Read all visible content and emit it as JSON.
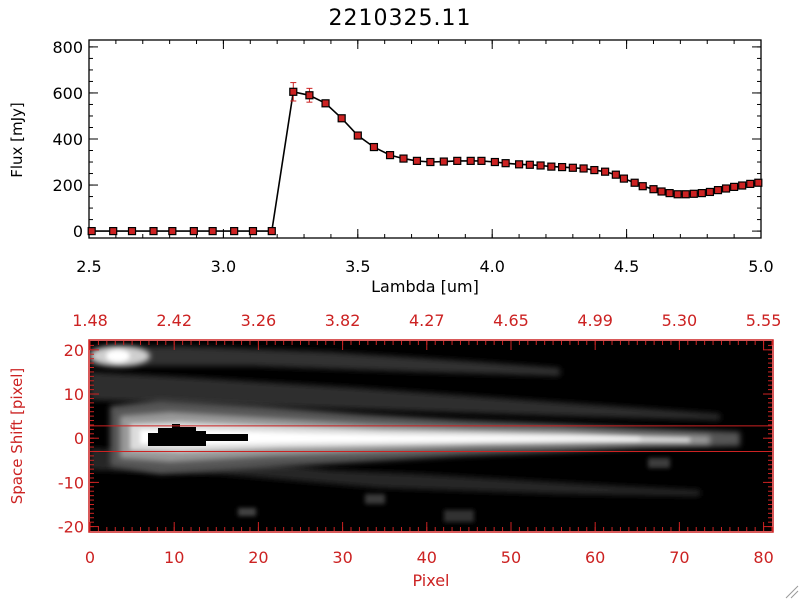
{
  "title": "2210325.11",
  "colors": {
    "axis_black": "#000000",
    "axis_red": "#cc2222",
    "marker_fill": "#cc2222",
    "errorbar": "#cc2222"
  },
  "chart_data": [
    {
      "type": "line",
      "title": "2210325.11",
      "xlabel": "Lambda [um]",
      "ylabel": "Flux [mJy]",
      "xlim": [
        2.5,
        5.0
      ],
      "ylim": [
        -30,
        830
      ],
      "xticks": [
        2.5,
        3.0,
        3.5,
        4.0,
        4.5,
        5.0
      ],
      "xtick_labels": [
        "2.5",
        "3.0",
        "3.5",
        "4.0",
        "4.5",
        "5.0"
      ],
      "yticks": [
        0,
        200,
        400,
        600,
        800
      ],
      "ytick_labels": [
        "0",
        "200",
        "400",
        "600",
        "800"
      ],
      "grid": false,
      "markers": "square",
      "series": [
        {
          "x": [
            2.51,
            2.59,
            2.66,
            2.74,
            2.81,
            2.89,
            2.96,
            3.04,
            3.11,
            3.18,
            3.26,
            3.32,
            3.38,
            3.44,
            3.5,
            3.56,
            3.62,
            3.67,
            3.72,
            3.77,
            3.82,
            3.87,
            3.92,
            3.96,
            4.01,
            4.05,
            4.1,
            4.14,
            4.18,
            4.22,
            4.26,
            4.3,
            4.34,
            4.38,
            4.42,
            4.46,
            4.49,
            4.53,
            4.56,
            4.6,
            4.63,
            4.66,
            4.69,
            4.72,
            4.75,
            4.78,
            4.81,
            4.84,
            4.87,
            4.9,
            4.93,
            4.96,
            4.99
          ],
          "y": [
            0,
            0,
            0,
            0,
            0,
            0,
            0,
            0,
            0,
            0,
            605,
            590,
            555,
            490,
            415,
            365,
            330,
            315,
            305,
            300,
            302,
            305,
            305,
            305,
            300,
            295,
            290,
            288,
            285,
            280,
            278,
            275,
            272,
            265,
            258,
            245,
            228,
            210,
            195,
            182,
            172,
            165,
            160,
            160,
            162,
            165,
            170,
            178,
            185,
            192,
            198,
            205,
            210
          ],
          "yerr": [
            0,
            0,
            0,
            0,
            0,
            0,
            0,
            0,
            0,
            0,
            40,
            30,
            0,
            0,
            0,
            0,
            0,
            0,
            0,
            0,
            0,
            0,
            0,
            0,
            0,
            0,
            0,
            0,
            0,
            0,
            0,
            0,
            0,
            0,
            0,
            0,
            0,
            0,
            0,
            0,
            0,
            0,
            0,
            0,
            0,
            0,
            0,
            0,
            0,
            0,
            0,
            0,
            0
          ]
        }
      ]
    },
    {
      "type": "heatmap",
      "xlabel": "Pixel",
      "ylabel": "Space Shift [pixel]",
      "xlim": [
        0,
        81
      ],
      "ylim": [
        -21,
        22
      ],
      "xticks": [
        0,
        10,
        20,
        30,
        40,
        50,
        60,
        70,
        80
      ],
      "xtick_labels": [
        "0",
        "10",
        "20",
        "30",
        "40",
        "50",
        "60",
        "70",
        "80"
      ],
      "yticks": [
        -20,
        -10,
        0,
        10,
        20
      ],
      "ytick_labels": [
        "-20",
        "-10",
        "0",
        "10",
        "20"
      ],
      "top_axis_ticks": [
        0,
        10,
        20,
        30,
        40,
        50,
        60,
        70,
        80
      ],
      "top_axis_labels": [
        "1.48",
        "2.42",
        "3.26",
        "3.82",
        "4.27",
        "4.65",
        "4.99",
        "5.30",
        "5.55"
      ],
      "aperture_lines": [
        2.8,
        -3.0
      ],
      "colormap": "grayscale"
    }
  ]
}
